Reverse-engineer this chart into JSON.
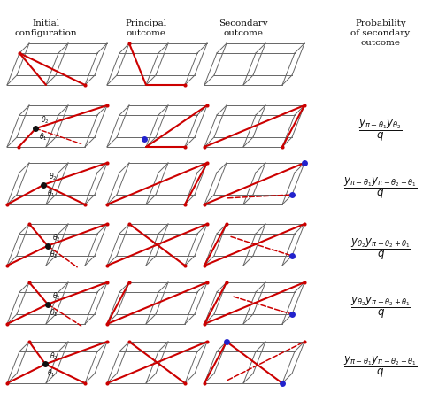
{
  "red": "#cc0000",
  "blue": "#2222cc",
  "black": "#111111",
  "gray": "#666666",
  "bg": "#ffffff",
  "prob_labels": [
    "",
    "y_{\\pi-\\theta_1}y_{\\theta_2} / q",
    "y_{\\pi-\\theta_1}y_{\\pi-\\theta_2+\\theta_1} / q",
    "y_{\\theta_2}y_{\\pi-\\theta_2+\\theta_1} / q",
    "y_{\\theta_2}y_{\\pi-\\theta_2+\\theta_1} / q",
    "y_{\\pi-\\theta_1}y_{\\pi-\\theta_2+\\theta_1} / q"
  ]
}
